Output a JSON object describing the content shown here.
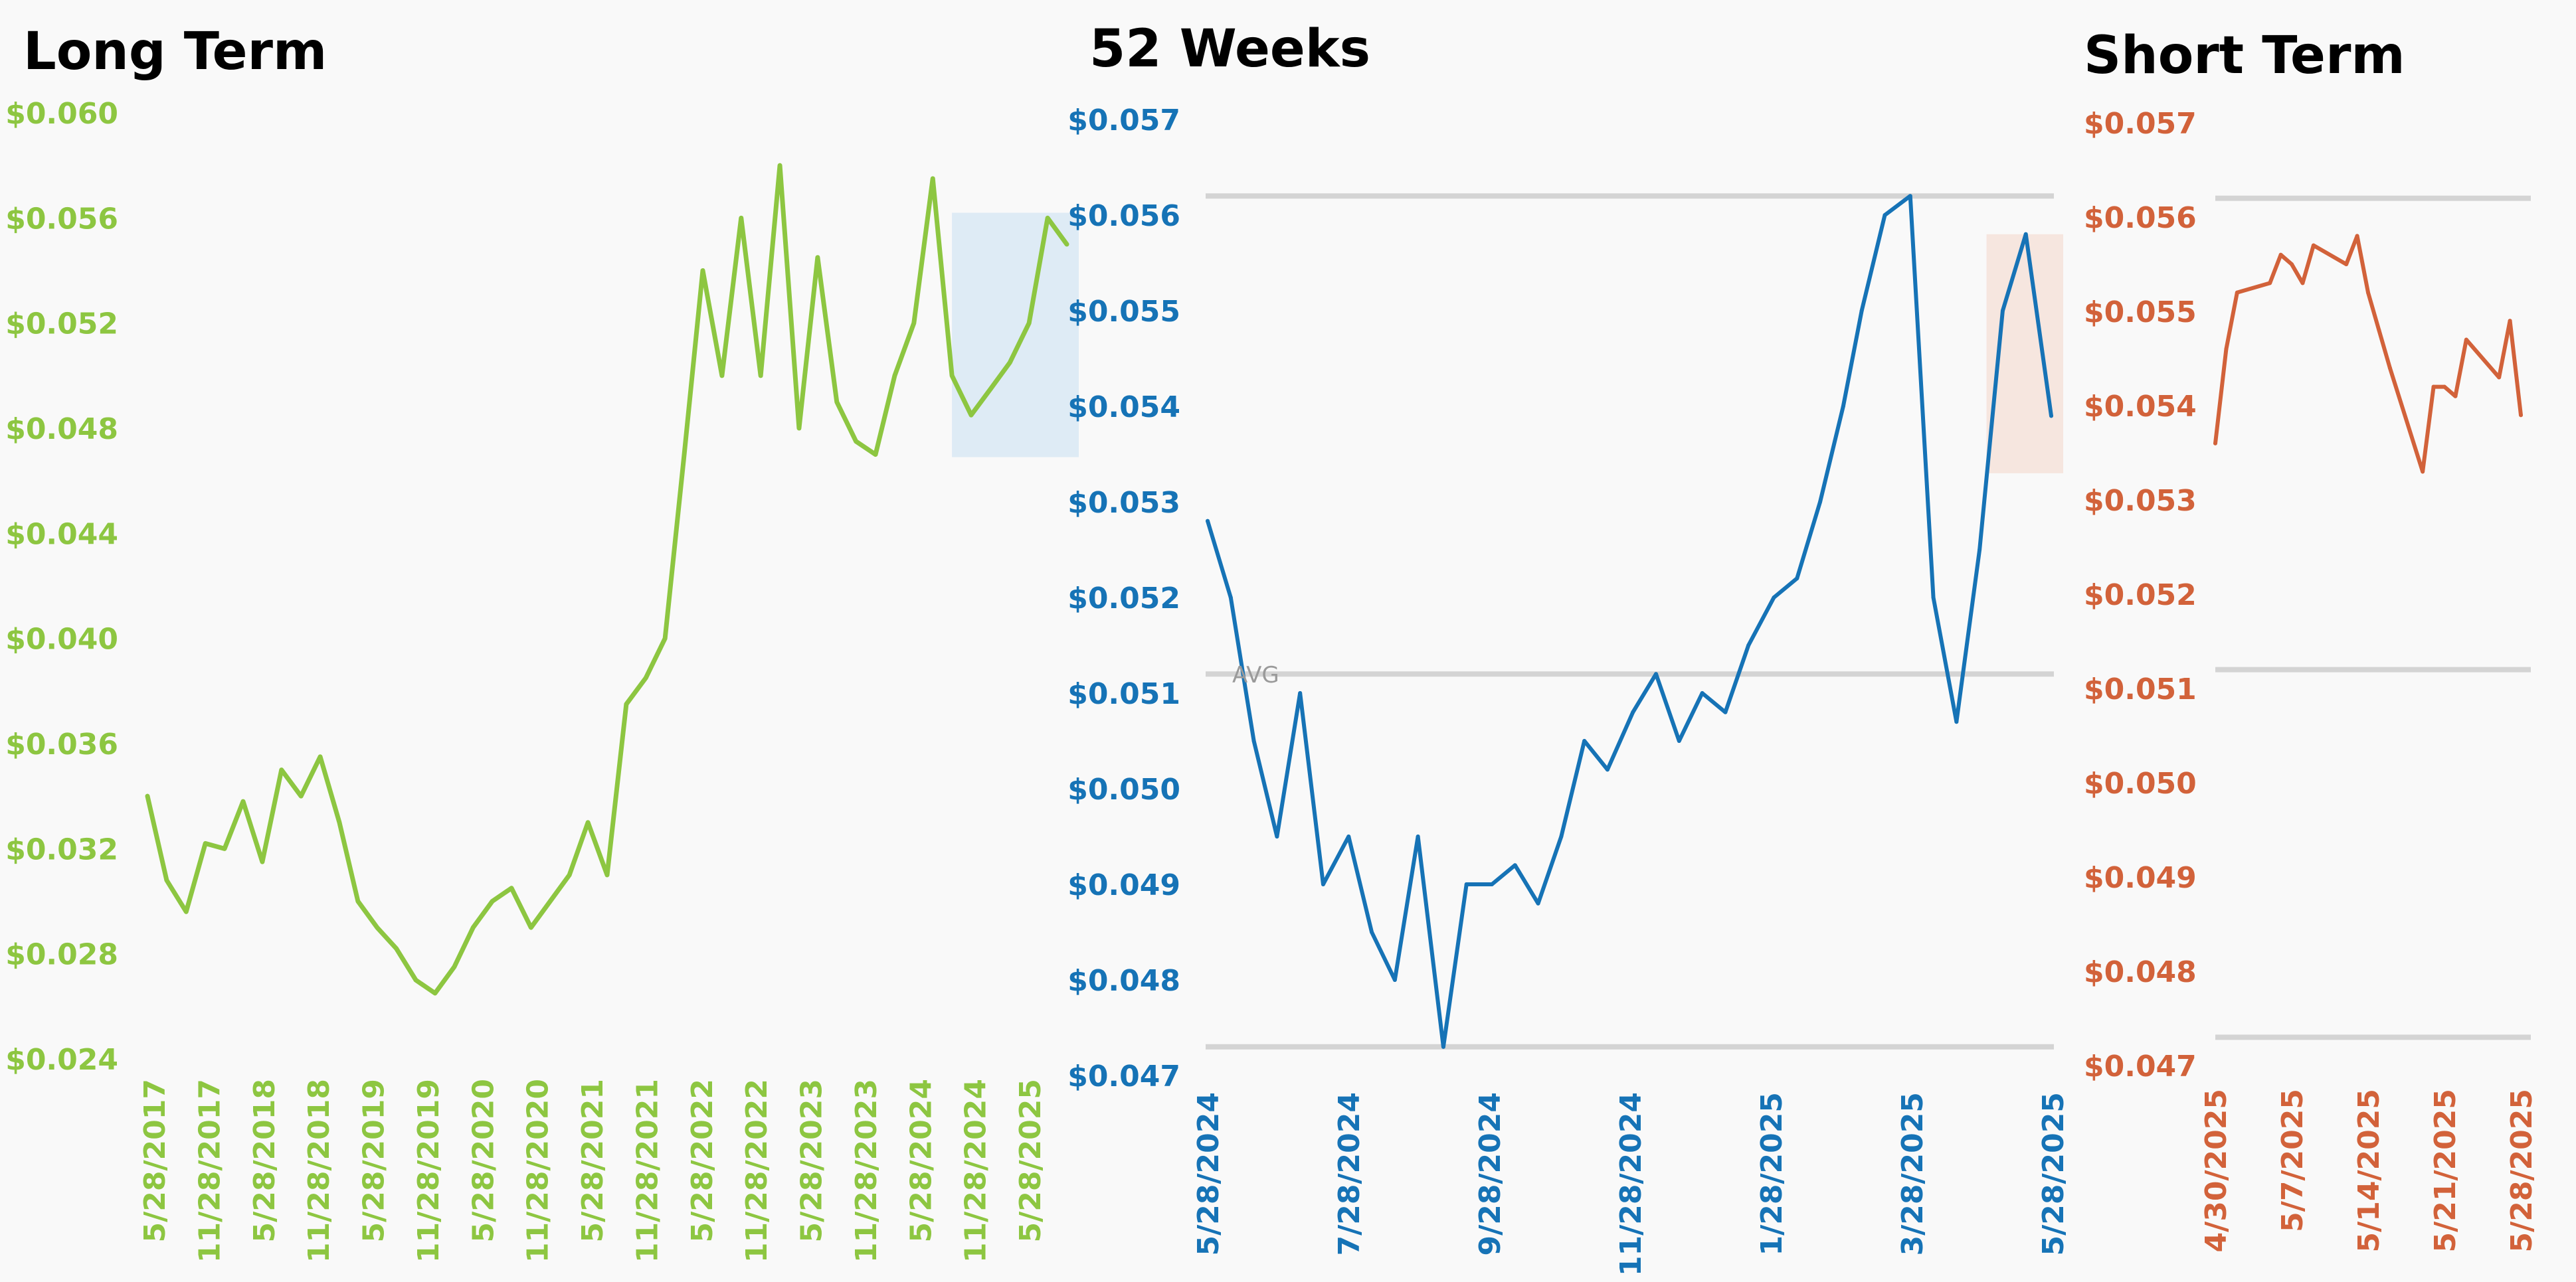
{
  "charts": [
    {
      "title": "Long Term",
      "color": "#8dc641",
      "highlight_color": "#deebf5",
      "chart_data": {
        "type": "line",
        "title": "Long Term",
        "xlabel": "",
        "ylabel": "",
        "ylim": [
          0.024,
          0.06
        ],
        "y_ticks": [
          "$0.060",
          "$0.056",
          "$0.052",
          "$0.048",
          "$0.044",
          "$0.040",
          "$0.036",
          "$0.032",
          "$0.028",
          "$0.024"
        ],
        "x_ticks": [
          "5/28/2017",
          "11/28/2017",
          "5/28/2018",
          "11/28/2018",
          "5/28/2019",
          "11/28/2019",
          "5/28/2020",
          "11/28/2020",
          "5/28/2021",
          "11/28/2021",
          "5/28/2022",
          "11/28/2022",
          "5/28/2023",
          "11/28/2023",
          "5/28/2024",
          "11/28/2024",
          "5/28/2025"
        ],
        "grid": false,
        "highlight_range": {
          "x": [
            "5/28/2024",
            "5/28/2025"
          ],
          "y": [
            0.0469,
            0.0562
          ]
        },
        "series": [
          {
            "x": [
              "5/28/2017",
              "7/28/2017",
              "9/28/2017",
              "11/28/2017",
              "1/28/2018",
              "3/28/2018",
              "5/28/2018",
              "7/28/2018",
              "9/28/2018",
              "11/28/2018",
              "1/28/2019",
              "3/28/2019",
              "5/28/2019",
              "7/28/2019",
              "9/28/2019",
              "11/28/2019",
              "1/28/2020",
              "3/28/2020",
              "5/28/2020",
              "7/28/2020",
              "9/28/2020",
              "11/28/2020",
              "1/28/2021",
              "3/28/2021",
              "5/28/2021",
              "7/28/2021",
              "9/28/2021",
              "11/28/2021",
              "1/28/2022",
              "3/28/2022",
              "5/28/2022",
              "7/28/2022",
              "9/28/2022",
              "11/28/2022",
              "1/28/2023",
              "3/28/2023",
              "5/28/2023",
              "7/28/2023",
              "9/28/2023",
              "11/28/2023",
              "1/28/2024",
              "3/28/2024",
              "5/28/2024",
              "7/28/2024",
              "9/28/2024",
              "11/28/2024",
              "1/28/2025",
              "3/28/2025",
              "5/28/2025"
            ],
            "values": [
              0.034,
              0.0308,
              0.0296,
              0.0322,
              0.032,
              0.0338,
              0.0315,
              0.035,
              0.034,
              0.0355,
              0.033,
              0.03,
              0.029,
              0.0282,
              0.027,
              0.0265,
              0.0275,
              0.029,
              0.03,
              0.0305,
              0.029,
              0.03,
              0.031,
              0.033,
              0.031,
              0.0375,
              0.0385,
              0.04,
              0.047,
              0.054,
              0.05,
              0.056,
              0.05,
              0.058,
              0.048,
              0.0545,
              0.049,
              0.0475,
              0.047,
              0.05,
              0.052,
              0.0575,
              0.05,
              0.0485,
              0.0495,
              0.0505,
              0.052,
              0.056,
              0.055
            ]
          }
        ]
      }
    },
    {
      "title": "52 Weeks",
      "color": "#1673b6",
      "highlight_color": "#f6e6df",
      "avg_label": "AVG",
      "chart_data": {
        "type": "line",
        "title": "52 Weeks",
        "xlabel": "",
        "ylabel": "",
        "ylim": [
          0.047,
          0.057
        ],
        "y_ticks": [
          "$0.057",
          "$0.056",
          "$0.055",
          "$0.054",
          "$0.053",
          "$0.052",
          "$0.051",
          "$0.050",
          "$0.049",
          "$0.048",
          "$0.047"
        ],
        "x_ticks": [
          "5/28/2024",
          "7/28/2024",
          "9/28/2024",
          "11/28/2024",
          "1/28/2025",
          "3/28/2025",
          "5/28/2025"
        ],
        "grid": false,
        "reference_lines": [
          0.0562,
          0.0512,
          0.0473
        ],
        "highlight_range": {
          "x": [
            "4/30/2025",
            "5/28/2025"
          ],
          "y": [
            0.0533,
            0.0558
          ]
        },
        "series": [
          {
            "x": [
              "5/28/2024",
              "6/7/2024",
              "6/17/2024",
              "6/27/2024",
              "7/7/2024",
              "7/17/2024",
              "7/28/2024",
              "8/7/2024",
              "8/17/2024",
              "8/27/2024",
              "9/7/2024",
              "9/17/2024",
              "9/28/2024",
              "10/8/2024",
              "10/18/2024",
              "10/28/2024",
              "11/7/2024",
              "11/17/2024",
              "11/28/2024",
              "12/8/2024",
              "12/18/2024",
              "12/28/2024",
              "1/7/2025",
              "1/17/2025",
              "1/28/2025",
              "2/7/2025",
              "2/17/2025",
              "2/27/2025",
              "3/7/2025",
              "3/17/2025",
              "3/28/2025",
              "4/7/2025",
              "4/17/2025",
              "4/27/2025",
              "5/7/2025",
              "5/17/2025",
              "5/28/2025"
            ],
            "values": [
              0.0528,
              0.052,
              0.0505,
              0.0495,
              0.051,
              0.049,
              0.0495,
              0.0485,
              0.048,
              0.0495,
              0.0473,
              0.049,
              0.049,
              0.0492,
              0.0488,
              0.0495,
              0.0505,
              0.0502,
              0.0508,
              0.0512,
              0.0505,
              0.051,
              0.0508,
              0.0515,
              0.052,
              0.0522,
              0.053,
              0.054,
              0.055,
              0.056,
              0.0562,
              0.052,
              0.0507,
              0.0525,
              0.055,
              0.0558,
              0.0539
            ]
          }
        ]
      }
    },
    {
      "title": "Short Term",
      "color": "#d2623a",
      "chart_data": {
        "type": "line",
        "title": "Short Term",
        "xlabel": "",
        "ylabel": "",
        "ylim": [
          0.047,
          0.057
        ],
        "y_ticks": [
          "$0.057",
          "$0.056",
          "$0.055",
          "$0.054",
          "$0.053",
          "$0.052",
          "$0.051",
          "$0.050",
          "$0.049",
          "$0.048",
          "$0.047"
        ],
        "x_ticks": [
          "4/30/2025",
          "5/7/2025",
          "5/14/2025",
          "5/21/2025",
          "5/28/2025"
        ],
        "grid": false,
        "reference_lines": [
          0.0562,
          0.0512,
          0.0473
        ],
        "series": [
          {
            "x": [
              "4/30/2025",
              "5/1/2025",
              "5/2/2025",
              "5/5/2025",
              "5/6/2025",
              "5/7/2025",
              "5/8/2025",
              "5/9/2025",
              "5/12/2025",
              "5/13/2025",
              "5/14/2025",
              "5/15/2025",
              "5/16/2025",
              "5/19/2025",
              "5/20/2025",
              "5/21/2025",
              "5/22/2025",
              "5/23/2025",
              "5/26/2025",
              "5/27/2025",
              "5/28/2025"
            ],
            "values": [
              0.0536,
              0.0546,
              0.0552,
              0.0553,
              0.0556,
              0.0555,
              0.0553,
              0.0557,
              0.0555,
              0.0558,
              0.0552,
              0.0548,
              0.0544,
              0.0533,
              0.0542,
              0.0542,
              0.0541,
              0.0547,
              0.0543,
              0.0549,
              0.0539
            ]
          }
        ]
      }
    }
  ]
}
